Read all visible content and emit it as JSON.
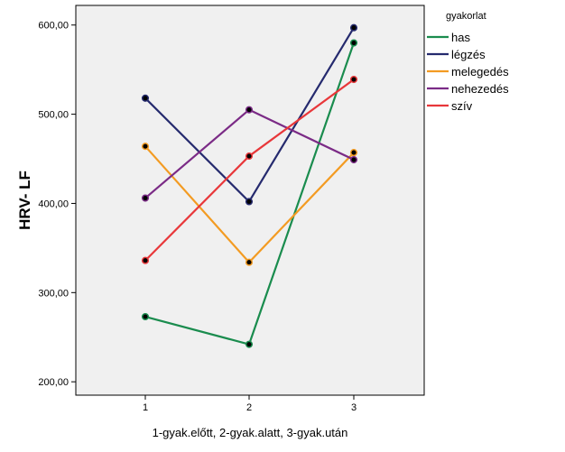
{
  "chart_data": {
    "type": "line",
    "x": [
      "1",
      "2",
      "3"
    ],
    "xlabel": "1-gyak.előtt, 2-gyak.alatt, 3-gyak.után",
    "ylabel": "HRV- LF",
    "ylim": [
      185,
      622
    ],
    "yticks": [
      "200,00",
      "300,00",
      "400,00",
      "500,00",
      "600,00"
    ],
    "ytick_values": [
      200,
      300,
      400,
      500,
      600
    ],
    "legend_title": "gyakorlat",
    "legend_position": "right",
    "grid": false,
    "plot_background": "#f0f0f0",
    "series": [
      {
        "name": "has",
        "color": "#1a8c4e",
        "values": [
          273,
          242,
          580
        ]
      },
      {
        "name": "légzés",
        "color": "#252a6e",
        "values": [
          518,
          402,
          597
        ]
      },
      {
        "name": "melegedés",
        "color": "#f39b22",
        "values": [
          464,
          334,
          457
        ]
      },
      {
        "name": "nehezedés",
        "color": "#7b2b86",
        "values": [
          406,
          505,
          449
        ]
      },
      {
        "name": "szív",
        "color": "#e8373a",
        "values": [
          336,
          453,
          539
        ]
      }
    ]
  }
}
